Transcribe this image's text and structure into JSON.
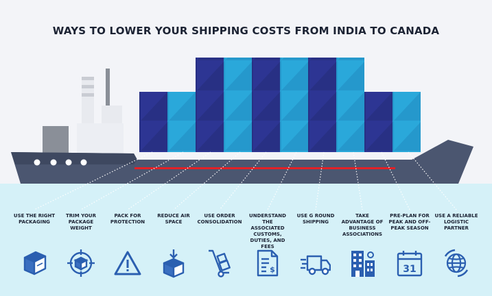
{
  "title": "WAYS TO LOWER YOUR SHIPPING COSTS FROM INDIA TO CANADA",
  "colors": {
    "navy": "#2d3593",
    "cyan": "#2aa8da",
    "hull": "#4b5670",
    "red_stripe": "#e32126",
    "sea": "#d5f1f8",
    "icon_blue": "#2b5fb0"
  },
  "tips": [
    {
      "label": "USE THE RIGHT PACKAGING",
      "icon": "box-icon"
    },
    {
      "label": "TRIM YOUR PACKAGE WEIGHT",
      "icon": "target-box-icon"
    },
    {
      "label": "PACK FOR PROTECTION",
      "icon": "warning-icon"
    },
    {
      "label": "REDUCE AIR SPACE",
      "icon": "compress-box-icon"
    },
    {
      "label": "USE ORDER CONSOLIDATION",
      "icon": "hand-truck-icon"
    },
    {
      "label": "UNDERSTAND THE ASSOCIATED CUSTOMS, DUTIES, AND FEES",
      "icon": "invoice-icon"
    },
    {
      "label": "USE G ROUND SHIPPING",
      "icon": "delivery-truck-icon"
    },
    {
      "label": "TAKE ADVANTAGE OF BUSINESS ASSOCIATIONS",
      "icon": "building-icon"
    },
    {
      "label": "PRE-PLAN FOR PEAK AND OFF-PEAK SEASON",
      "icon": "calendar-icon",
      "calendar_day": "31"
    },
    {
      "label": "USE A RELIABLE LOGISTIC PARTNER",
      "icon": "globe-icon"
    }
  ]
}
